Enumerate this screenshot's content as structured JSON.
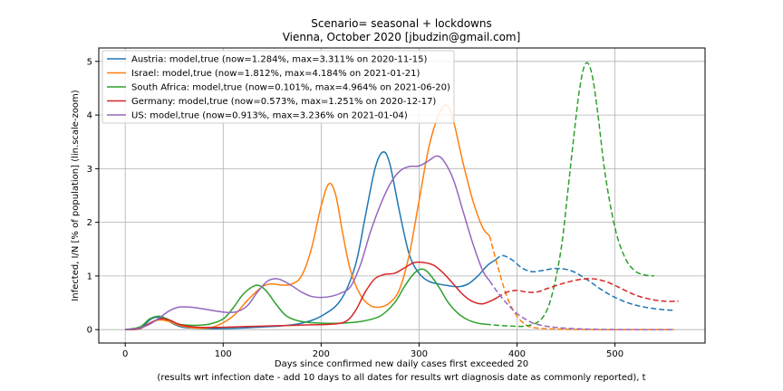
{
  "chart_data": {
    "type": "line",
    "title": "Scenario= seasonal + lockdowns",
    "subtitle": "Vienna, October 2020 [jbudzin@gmail.com]",
    "xlabel_line1": "Days since confirmed new daily cases first exceeded 20",
    "xlabel_line2": "(results wrt infection date - add 10 days to all dates for results wrt diagnosis date as commonly reported), t",
    "ylabel": "Infected, I/N [% of population] (lin.scale-zoom)",
    "xlim": [
      -27,
      592
    ],
    "ylim": [
      -0.25,
      5.25
    ],
    "xticks": [
      0,
      100,
      200,
      300,
      400,
      500
    ],
    "yticks": [
      0,
      1,
      2,
      3,
      4,
      5
    ],
    "grid": true,
    "legend_position": "top-left",
    "series": [
      {
        "name": "Austria: model,true (now=1.284%, max=3.311% on 2020-11-15)",
        "color": "#1f77b4",
        "solid": [
          [
            0,
            0
          ],
          [
            15,
            0.02
          ],
          [
            25,
            0.18
          ],
          [
            32,
            0.23
          ],
          [
            40,
            0.2
          ],
          [
            50,
            0.1
          ],
          [
            60,
            0.04
          ],
          [
            80,
            0.02
          ],
          [
            100,
            0.02
          ],
          [
            120,
            0.03
          ],
          [
            140,
            0.05
          ],
          [
            160,
            0.07
          ],
          [
            180,
            0.12
          ],
          [
            200,
            0.25
          ],
          [
            220,
            0.55
          ],
          [
            235,
            1.2
          ],
          [
            245,
            2.1
          ],
          [
            255,
            3.0
          ],
          [
            263,
            3.31
          ],
          [
            270,
            3.1
          ],
          [
            280,
            2.2
          ],
          [
            290,
            1.4
          ],
          [
            300,
            1.05
          ],
          [
            310,
            0.9
          ],
          [
            320,
            0.85
          ],
          [
            330,
            0.82
          ],
          [
            340,
            0.8
          ],
          [
            350,
            0.85
          ],
          [
            360,
            1.0
          ],
          [
            370,
            1.2
          ],
          [
            378,
            1.3
          ]
        ],
        "dashed": [
          [
            378,
            1.3
          ],
          [
            385,
            1.38
          ],
          [
            395,
            1.3
          ],
          [
            405,
            1.15
          ],
          [
            415,
            1.08
          ],
          [
            425,
            1.1
          ],
          [
            440,
            1.14
          ],
          [
            455,
            1.1
          ],
          [
            470,
            0.95
          ],
          [
            490,
            0.7
          ],
          [
            510,
            0.52
          ],
          [
            530,
            0.42
          ],
          [
            550,
            0.37
          ],
          [
            560,
            0.36
          ]
        ]
      },
      {
        "name": "Israel: model,true (now=1.812%, max=4.184% on 2021-01-21)",
        "color": "#ff7f0e",
        "solid": [
          [
            0,
            0
          ],
          [
            15,
            0.02
          ],
          [
            25,
            0.12
          ],
          [
            35,
            0.18
          ],
          [
            45,
            0.15
          ],
          [
            55,
            0.08
          ],
          [
            70,
            0.03
          ],
          [
            90,
            0.05
          ],
          [
            110,
            0.25
          ],
          [
            125,
            0.55
          ],
          [
            140,
            0.8
          ],
          [
            150,
            0.85
          ],
          [
            160,
            0.83
          ],
          [
            170,
            0.85
          ],
          [
            180,
            1.0
          ],
          [
            190,
            1.5
          ],
          [
            200,
            2.3
          ],
          [
            208,
            2.72
          ],
          [
            215,
            2.5
          ],
          [
            222,
            1.8
          ],
          [
            230,
            1.1
          ],
          [
            240,
            0.65
          ],
          [
            250,
            0.45
          ],
          [
            260,
            0.42
          ],
          [
            270,
            0.5
          ],
          [
            280,
            0.75
          ],
          [
            290,
            1.4
          ],
          [
            300,
            2.4
          ],
          [
            310,
            3.4
          ],
          [
            320,
            4.0
          ],
          [
            328,
            4.184
          ],
          [
            335,
            3.9
          ],
          [
            345,
            3.1
          ],
          [
            355,
            2.4
          ],
          [
            365,
            1.9
          ],
          [
            372,
            1.75
          ]
        ],
        "dashed": [
          [
            372,
            1.75
          ],
          [
            380,
            1.2
          ],
          [
            390,
            0.6
          ],
          [
            400,
            0.25
          ],
          [
            410,
            0.08
          ],
          [
            420,
            0.03
          ],
          [
            440,
            0.01
          ],
          [
            480,
            0.0
          ],
          [
            520,
            0.0
          ],
          [
            560,
            0.0
          ]
        ]
      },
      {
        "name": "South Africa: model,true (now=0.101%, max=4.964% on 2021-06-20)",
        "color": "#2ca02c",
        "solid": [
          [
            0,
            0
          ],
          [
            15,
            0.05
          ],
          [
            25,
            0.2
          ],
          [
            35,
            0.25
          ],
          [
            45,
            0.18
          ],
          [
            55,
            0.1
          ],
          [
            70,
            0.08
          ],
          [
            85,
            0.1
          ],
          [
            100,
            0.2
          ],
          [
            110,
            0.4
          ],
          [
            120,
            0.65
          ],
          [
            130,
            0.8
          ],
          [
            137,
            0.82
          ],
          [
            145,
            0.7
          ],
          [
            155,
            0.45
          ],
          [
            165,
            0.25
          ],
          [
            180,
            0.15
          ],
          [
            200,
            0.12
          ],
          [
            220,
            0.12
          ],
          [
            240,
            0.15
          ],
          [
            260,
            0.25
          ],
          [
            275,
            0.5
          ],
          [
            285,
            0.8
          ],
          [
            295,
            1.05
          ],
          [
            303,
            1.13
          ],
          [
            310,
            1.05
          ],
          [
            320,
            0.8
          ],
          [
            330,
            0.5
          ],
          [
            340,
            0.3
          ],
          [
            350,
            0.18
          ],
          [
            360,
            0.12
          ],
          [
            368,
            0.1
          ]
        ],
        "dashed": [
          [
            368,
            0.1
          ],
          [
            390,
            0.07
          ],
          [
            410,
            0.07
          ],
          [
            425,
            0.2
          ],
          [
            435,
            0.6
          ],
          [
            445,
            1.5
          ],
          [
            452,
            2.6
          ],
          [
            458,
            3.6
          ],
          [
            464,
            4.5
          ],
          [
            470,
            4.96
          ],
          [
            476,
            4.8
          ],
          [
            482,
            4.1
          ],
          [
            490,
            2.9
          ],
          [
            500,
            1.9
          ],
          [
            510,
            1.35
          ],
          [
            520,
            1.1
          ],
          [
            530,
            1.02
          ],
          [
            540,
            1.0
          ]
        ]
      },
      {
        "name": "Germany: model,true (now=0.573%, max=1.251% on 2020-12-17)",
        "color": "#d62728",
        "solid": [
          [
            0,
            0
          ],
          [
            15,
            0.02
          ],
          [
            25,
            0.12
          ],
          [
            35,
            0.2
          ],
          [
            45,
            0.18
          ],
          [
            55,
            0.1
          ],
          [
            70,
            0.05
          ],
          [
            90,
            0.04
          ],
          [
            110,
            0.05
          ],
          [
            130,
            0.06
          ],
          [
            150,
            0.07
          ],
          [
            170,
            0.08
          ],
          [
            190,
            0.09
          ],
          [
            210,
            0.1
          ],
          [
            225,
            0.15
          ],
          [
            235,
            0.35
          ],
          [
            245,
            0.7
          ],
          [
            255,
            0.95
          ],
          [
            265,
            1.03
          ],
          [
            275,
            1.05
          ],
          [
            285,
            1.15
          ],
          [
            295,
            1.25
          ],
          [
            305,
            1.25
          ],
          [
            315,
            1.2
          ],
          [
            325,
            1.05
          ],
          [
            335,
            0.85
          ],
          [
            345,
            0.65
          ],
          [
            355,
            0.52
          ],
          [
            365,
            0.48
          ],
          [
            375,
            0.55
          ],
          [
            380,
            0.6
          ]
        ],
        "dashed": [
          [
            380,
            0.6
          ],
          [
            390,
            0.7
          ],
          [
            400,
            0.73
          ],
          [
            410,
            0.7
          ],
          [
            420,
            0.7
          ],
          [
            430,
            0.76
          ],
          [
            445,
            0.85
          ],
          [
            460,
            0.92
          ],
          [
            475,
            0.95
          ],
          [
            490,
            0.9
          ],
          [
            505,
            0.78
          ],
          [
            520,
            0.65
          ],
          [
            535,
            0.57
          ],
          [
            550,
            0.53
          ],
          [
            565,
            0.53
          ]
        ]
      },
      {
        "name": "US: model,true (now=0.913%, max=3.236% on 2021-01-04)",
        "color": "#9467bd",
        "solid": [
          [
            0,
            0
          ],
          [
            15,
            0.03
          ],
          [
            25,
            0.1
          ],
          [
            35,
            0.22
          ],
          [
            45,
            0.35
          ],
          [
            55,
            0.42
          ],
          [
            65,
            0.42
          ],
          [
            75,
            0.4
          ],
          [
            85,
            0.37
          ],
          [
            95,
            0.34
          ],
          [
            105,
            0.32
          ],
          [
            115,
            0.34
          ],
          [
            125,
            0.45
          ],
          [
            135,
            0.7
          ],
          [
            145,
            0.9
          ],
          [
            153,
            0.95
          ],
          [
            160,
            0.92
          ],
          [
            170,
            0.82
          ],
          [
            180,
            0.7
          ],
          [
            190,
            0.62
          ],
          [
            200,
            0.6
          ],
          [
            210,
            0.62
          ],
          [
            220,
            0.68
          ],
          [
            230,
            0.8
          ],
          [
            240,
            1.2
          ],
          [
            250,
            1.8
          ],
          [
            260,
            2.3
          ],
          [
            270,
            2.7
          ],
          [
            280,
            2.95
          ],
          [
            290,
            3.04
          ],
          [
            300,
            3.05
          ],
          [
            310,
            3.15
          ],
          [
            318,
            3.236
          ],
          [
            325,
            3.15
          ],
          [
            335,
            2.8
          ],
          [
            345,
            2.2
          ],
          [
            355,
            1.6
          ],
          [
            365,
            1.1
          ],
          [
            372,
            0.91
          ]
        ],
        "dashed": [
          [
            372,
            0.91
          ],
          [
            380,
            0.7
          ],
          [
            390,
            0.48
          ],
          [
            400,
            0.3
          ],
          [
            410,
            0.18
          ],
          [
            420,
            0.1
          ],
          [
            440,
            0.04
          ],
          [
            470,
            0.01
          ],
          [
            510,
            0.0
          ],
          [
            560,
            0.0
          ]
        ]
      }
    ]
  }
}
